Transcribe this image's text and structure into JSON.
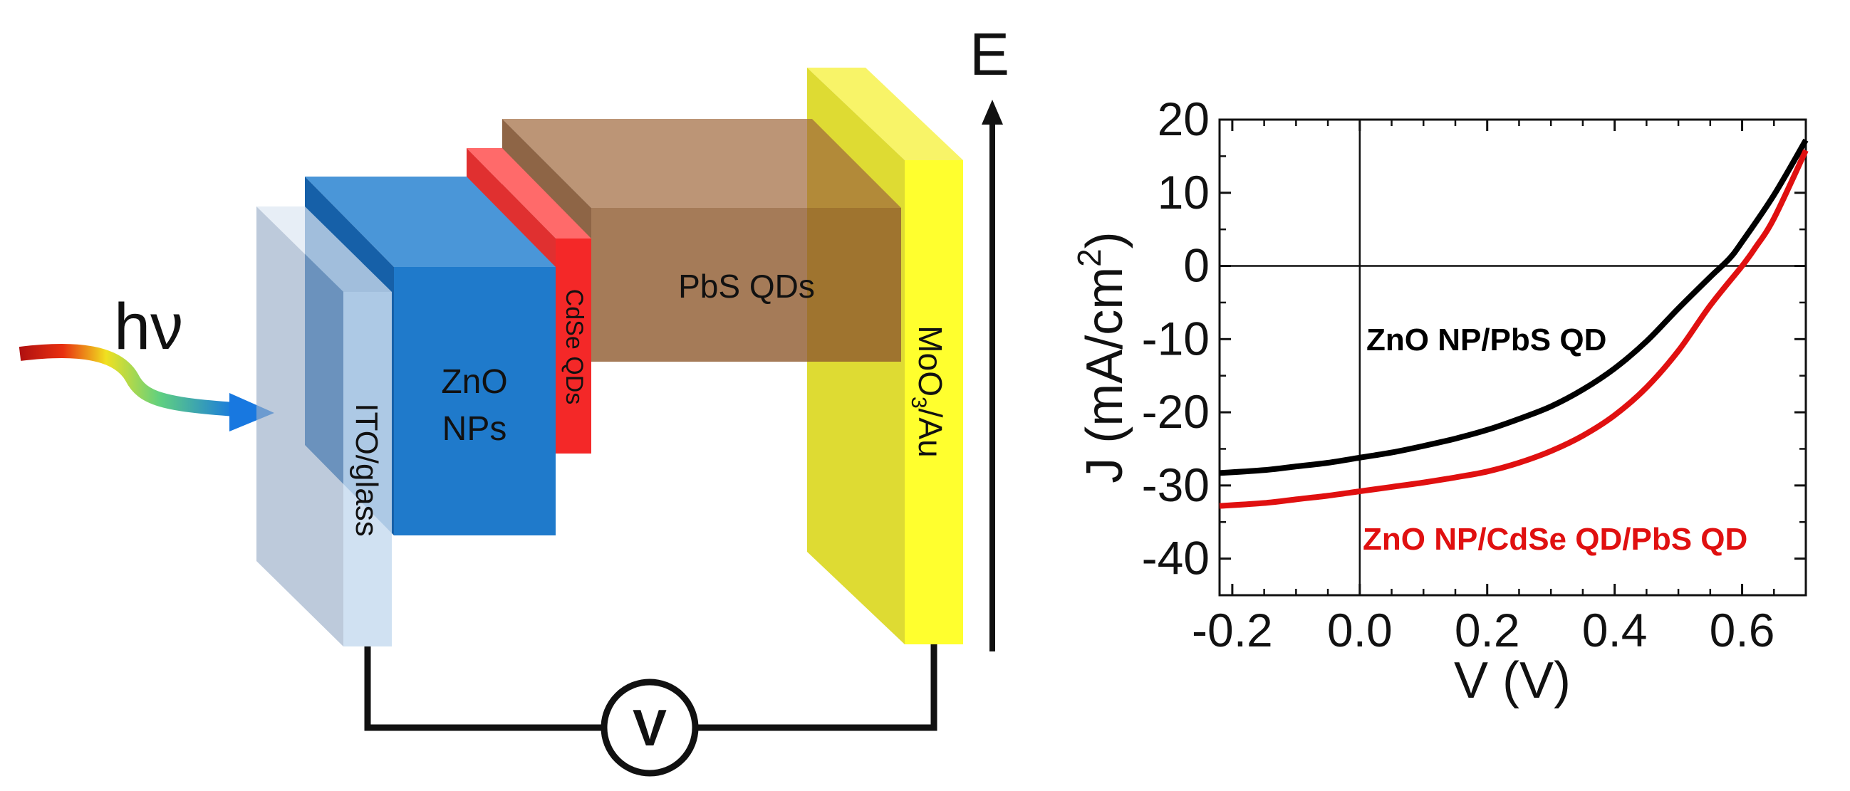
{
  "diagram": {
    "photon_label": "hν",
    "energy_label": "E",
    "voltmeter_label": "V",
    "layers": [
      {
        "name": "ito",
        "label": "ITO/glass"
      },
      {
        "name": "zno",
        "label_line1": "ZnO",
        "label_line2": "NPs"
      },
      {
        "name": "cdse",
        "label": "CdSe QDs"
      },
      {
        "name": "pbs",
        "label": "PbS QDs"
      },
      {
        "name": "moo3",
        "label_prefix": "MoO",
        "label_subscript": "3",
        "label_suffix": "/Au"
      }
    ],
    "colors": {
      "ito": "#bfd3e8",
      "zno": "#1f78c8",
      "cdse": "#f02020",
      "pbs": "#a0704a",
      "moo3": "#f4f022",
      "circuit": "#111111"
    }
  },
  "chart_data": {
    "type": "line",
    "xlabel": "V (V)",
    "ylabel_prefix": "J (mA/cm",
    "ylabel_superscript": "2",
    "ylabel_suffix": ")",
    "xlim": [
      -0.22,
      0.7
    ],
    "ylim": [
      -45,
      20
    ],
    "xticks": [
      -0.2,
      0.0,
      0.2,
      0.4,
      0.6
    ],
    "xtick_labels": [
      "-0.2",
      "0.0",
      "0.2",
      "0.4",
      "0.6"
    ],
    "yticks": [
      20,
      10,
      0,
      -10,
      -20,
      -30,
      -40
    ],
    "ytick_labels": [
      "20",
      "10",
      "0",
      "-10",
      "-20",
      "-30",
      "-40"
    ],
    "zero_lines": true,
    "series": [
      {
        "name": "ZnO NP/PbS QD",
        "color": "#000000",
        "x": [
          -0.22,
          -0.15,
          -0.1,
          -0.05,
          0.0,
          0.05,
          0.1,
          0.15,
          0.2,
          0.25,
          0.3,
          0.35,
          0.4,
          0.45,
          0.5,
          0.55,
          0.58,
          0.6,
          0.65,
          0.7
        ],
        "y": [
          -28.3,
          -27.9,
          -27.4,
          -26.9,
          -26.2,
          -25.5,
          -24.6,
          -23.6,
          -22.4,
          -20.9,
          -19.2,
          -16.9,
          -14.0,
          -10.3,
          -5.8,
          -1.5,
          1.0,
          3.3,
          9.7,
          17.2
        ]
      },
      {
        "name": "ZnO NP/CdSe QD/PbS QD",
        "color": "#e01010",
        "x": [
          -0.22,
          -0.15,
          -0.1,
          -0.05,
          0.0,
          0.05,
          0.1,
          0.15,
          0.2,
          0.25,
          0.3,
          0.35,
          0.4,
          0.45,
          0.5,
          0.55,
          0.6,
          0.62,
          0.65,
          0.7
        ],
        "y": [
          -32.8,
          -32.4,
          -31.9,
          -31.4,
          -30.8,
          -30.2,
          -29.6,
          -28.9,
          -28.1,
          -26.9,
          -25.3,
          -23.2,
          -20.4,
          -16.6,
          -11.6,
          -5.4,
          0.0,
          2.4,
          6.5,
          15.8
        ]
      }
    ]
  }
}
